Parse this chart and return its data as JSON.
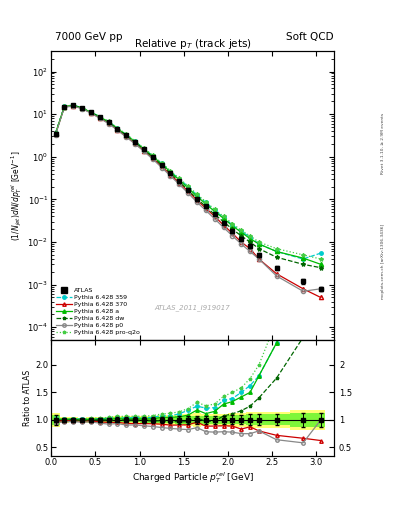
{
  "title_left": "7000 GeV pp",
  "title_right": "Soft QCD",
  "plot_title": "Relative p$_T$ (track jets)",
  "xlabel": "Charged Particle $\\dot{p}_T$ el [GeV]",
  "ylabel_main": "$(1/N_{jet})dN/dp_T^{rel}$ [GeV$^{-1}$]",
  "ylabel_ratio": "Ratio to ATLAS",
  "right_label_top": "Rivet 3.1.10, ≥ 2.9M events",
  "right_label_bot": "mcplots.cern.ch [arXiv:1306.3436]",
  "watermark": "ATLAS_2011_I919017",
  "xlim": [
    0,
    3.2
  ],
  "ylim_main": [
    5e-05,
    300
  ],
  "ylim_ratio": [
    0.35,
    2.45
  ],
  "atlas_x": [
    0.05,
    0.15,
    0.25,
    0.35,
    0.45,
    0.55,
    0.65,
    0.75,
    0.85,
    0.95,
    1.05,
    1.15,
    1.25,
    1.35,
    1.45,
    1.55,
    1.65,
    1.75,
    1.85,
    1.95,
    2.05,
    2.15,
    2.25,
    2.35,
    2.55,
    2.85,
    3.05
  ],
  "atlas_y": [
    3.5,
    15.0,
    16.0,
    14.0,
    11.0,
    8.5,
    6.5,
    4.5,
    3.2,
    2.2,
    1.5,
    1.0,
    0.65,
    0.42,
    0.27,
    0.17,
    0.1,
    0.07,
    0.045,
    0.028,
    0.018,
    0.012,
    0.008,
    0.005,
    0.0025,
    0.0012,
    0.0008
  ],
  "atlas_yerr": [
    0.3,
    0.5,
    0.5,
    0.4,
    0.35,
    0.3,
    0.25,
    0.2,
    0.15,
    0.1,
    0.08,
    0.05,
    0.04,
    0.025,
    0.018,
    0.012,
    0.008,
    0.005,
    0.003,
    0.002,
    0.0015,
    0.001,
    0.0008,
    0.0005,
    0.00025,
    0.00015,
    0.0001
  ],
  "py359_y": [
    3.6,
    15.2,
    16.3,
    14.2,
    11.2,
    8.7,
    6.7,
    4.7,
    3.3,
    2.3,
    1.55,
    1.05,
    0.7,
    0.45,
    0.3,
    0.2,
    0.125,
    0.085,
    0.055,
    0.038,
    0.025,
    0.018,
    0.013,
    0.009,
    0.006,
    0.004,
    0.0055
  ],
  "py370_y": [
    3.4,
    14.8,
    15.8,
    13.7,
    10.8,
    8.2,
    6.2,
    4.3,
    3.0,
    2.05,
    1.4,
    0.93,
    0.6,
    0.38,
    0.245,
    0.155,
    0.096,
    0.062,
    0.04,
    0.025,
    0.016,
    0.01,
    0.007,
    0.004,
    0.0018,
    0.0008,
    0.0005
  ],
  "pya_y": [
    3.55,
    15.1,
    16.2,
    14.0,
    11.1,
    8.6,
    6.6,
    4.6,
    3.25,
    2.25,
    1.52,
    1.02,
    0.68,
    0.44,
    0.285,
    0.185,
    0.118,
    0.078,
    0.052,
    0.036,
    0.024,
    0.017,
    0.012,
    0.009,
    0.006,
    0.0042,
    0.003
  ],
  "pydw_y": [
    3.5,
    15.0,
    16.1,
    13.9,
    11.0,
    8.5,
    6.5,
    4.5,
    3.2,
    2.2,
    1.48,
    0.98,
    0.64,
    0.41,
    0.26,
    0.165,
    0.104,
    0.068,
    0.044,
    0.03,
    0.02,
    0.014,
    0.01,
    0.007,
    0.0044,
    0.003,
    0.0025
  ],
  "pyp0_y": [
    3.3,
    14.5,
    15.5,
    13.4,
    10.6,
    8.0,
    6.0,
    4.2,
    2.9,
    2.0,
    1.34,
    0.88,
    0.56,
    0.355,
    0.225,
    0.14,
    0.086,
    0.055,
    0.035,
    0.022,
    0.014,
    0.009,
    0.006,
    0.004,
    0.0016,
    0.0007,
    0.0008
  ],
  "pyprq2o_y": [
    3.6,
    15.3,
    16.4,
    14.3,
    11.3,
    8.8,
    6.8,
    4.8,
    3.4,
    2.35,
    1.6,
    1.08,
    0.72,
    0.47,
    0.31,
    0.205,
    0.132,
    0.088,
    0.058,
    0.04,
    0.027,
    0.019,
    0.014,
    0.01,
    0.007,
    0.005,
    0.004
  ],
  "color_atlas": "#000000",
  "color_py359": "#00cccc",
  "color_py370": "#cc0000",
  "color_pya": "#00bb00",
  "color_pydw": "#006600",
  "color_pyp0": "#888888",
  "color_pyprq2o": "#44cc44",
  "band_yellow": "#ffff00",
  "band_green": "#00ee00",
  "ratio_yticks": [
    0.5,
    1.0,
    1.5,
    2.0
  ],
  "ratio_ytick_labels": [
    "0.5",
    "1",
    "1.5",
    "2"
  ]
}
